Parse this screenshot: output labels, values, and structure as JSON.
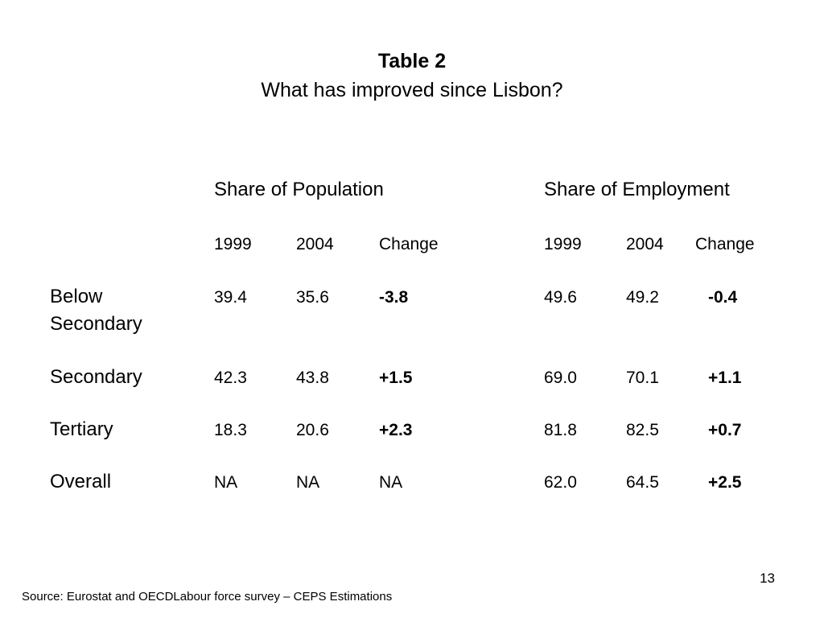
{
  "slide": {
    "title": "Table 2",
    "subtitle": "What has improved since Lisbon?",
    "page_number": "13",
    "source": "Source: Eurostat and OECDLabour force survey – CEPS Estimations"
  },
  "table": {
    "groups": [
      "Share of Population",
      "Share of Employment"
    ],
    "columns": [
      "1999",
      "2004",
      "Change",
      "1999",
      "2004",
      "Change"
    ],
    "rows": [
      {
        "label": "Below Secondary",
        "values": [
          "39.4",
          "35.6",
          "-3.8",
          "49.6",
          "49.2",
          "-0.4"
        ]
      },
      {
        "label": "Secondary",
        "values": [
          "42.3",
          "43.8",
          "+1.5",
          "69.0",
          "70.1",
          "+1.1"
        ]
      },
      {
        "label": "Tertiary",
        "values": [
          "18.3",
          "20.6",
          "+2.3",
          "81.8",
          "82.5",
          "+0.7"
        ]
      },
      {
        "label": "Overall",
        "values": [
          "NA",
          "NA",
          "NA",
          "62.0",
          "64.5",
          "+2.5"
        ]
      }
    ]
  }
}
